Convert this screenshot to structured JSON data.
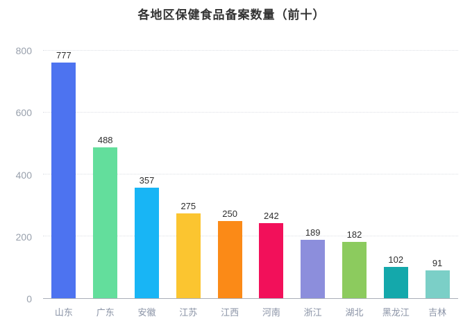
{
  "title": "各地区保健食品备案数量（前十）",
  "chart_data": {
    "type": "bar",
    "title": "各地区保健食品备案数量（前十）",
    "categories": [
      "山东",
      "广东",
      "安徽",
      "江苏",
      "江西",
      "河南",
      "浙江",
      "湖北",
      "黑龙江",
      "吉林"
    ],
    "values": [
      777,
      488,
      357,
      275,
      250,
      242,
      189,
      182,
      102,
      91
    ],
    "bar_colors": [
      "#4d73f0",
      "#63de9c",
      "#18b5f5",
      "#fbc530",
      "#fb8a17",
      "#f2105a",
      "#8c8edc",
      "#8ccb5e",
      "#14a8ab",
      "#7bcfc7"
    ],
    "xlabel": "",
    "ylabel": "",
    "ylim": [
      0,
      800
    ],
    "yticks": [
      0,
      200,
      400,
      600,
      800
    ],
    "grid": "horizontal-dotted",
    "legend": "none",
    "value_labels": "above-bars"
  },
  "colors": {
    "background": "#ffffff",
    "title_text": "#333333",
    "axis_tick_text": "#98a0ac",
    "category_text": "#8a93a6",
    "value_label_text": "#2e2e2e",
    "gridline": "#dcdfe4",
    "axis_line": "#a9aeb8"
  }
}
